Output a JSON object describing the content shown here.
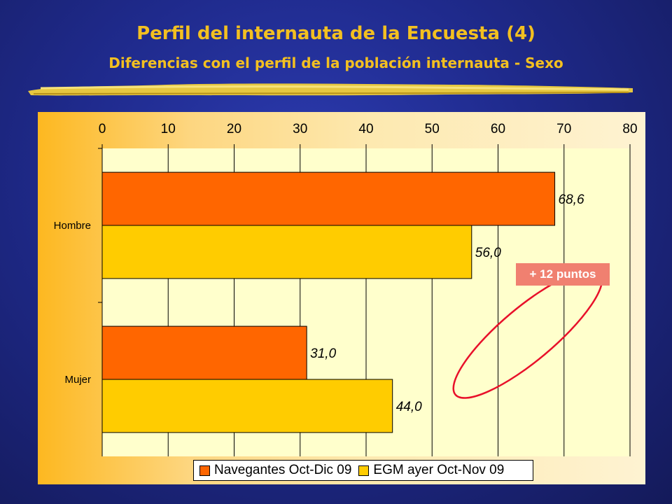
{
  "title": "Perfil del internauta de la Encuesta (4)",
  "subtitle": "Diferencias con el perfil de la población internauta - Sexo",
  "highlight_badge": "+ 12 puntos",
  "colors": {
    "title": "#f3c020",
    "series1": "#ff6600",
    "series2": "#ffcc00",
    "highlight_ellipse": "#e8102a",
    "badge": "#f08070"
  },
  "chart_data": {
    "type": "bar",
    "orientation": "horizontal",
    "categories": [
      "Hombre",
      "Mujer"
    ],
    "series": [
      {
        "name": "Navegantes Oct-Dic 09",
        "values": [
          68.6,
          31.0
        ],
        "labels": [
          "68,6",
          "31,0"
        ]
      },
      {
        "name": "EGM ayer Oct-Nov 09",
        "values": [
          56.0,
          44.0
        ],
        "labels": [
          "56,0",
          "44,0"
        ]
      }
    ],
    "xlim": [
      0,
      80
    ],
    "xticks": [
      "0",
      "10",
      "20",
      "30",
      "40",
      "50",
      "60",
      "70",
      "80"
    ],
    "xaxis_position": "top",
    "grid": true,
    "legend_position": "bottom"
  }
}
